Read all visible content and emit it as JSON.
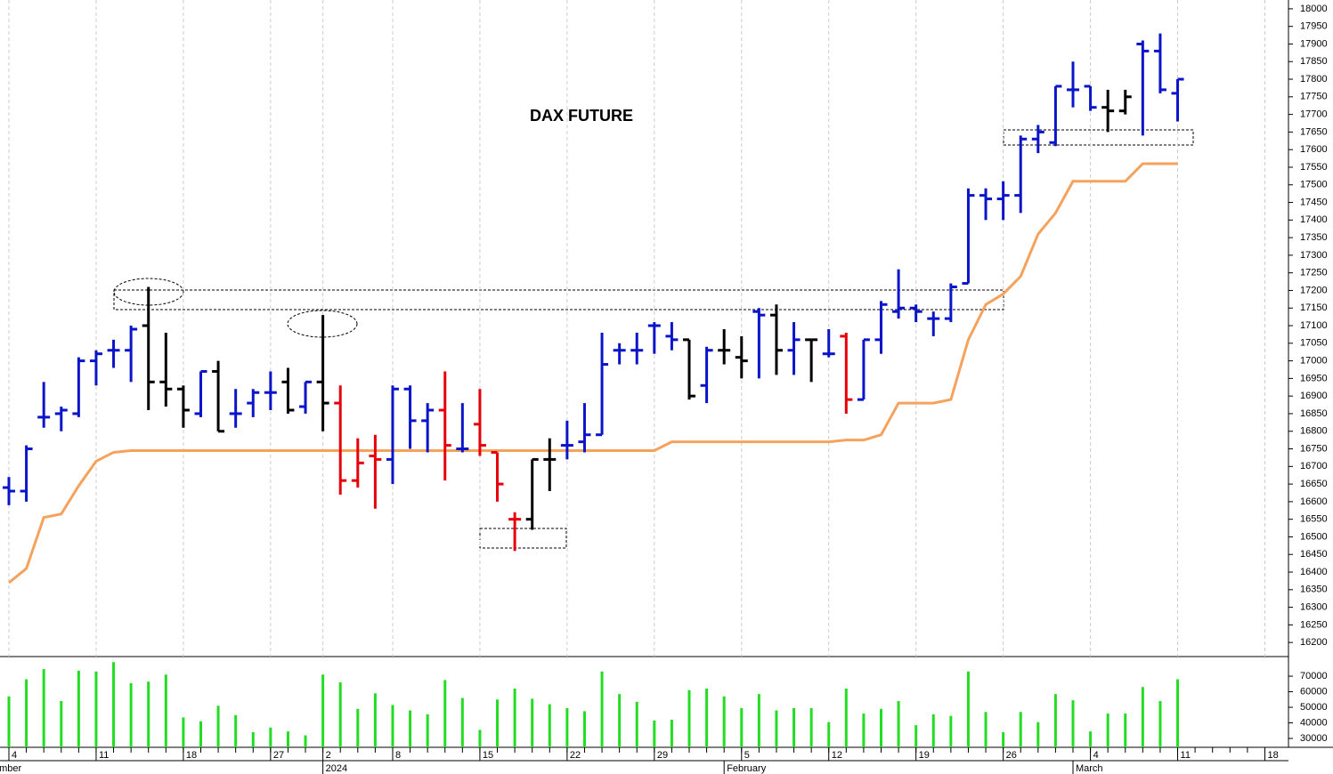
{
  "chart_data": {
    "type": "ohlc",
    "title": "DAX FUTURE",
    "categories": [
      "4",
      null,
      null,
      null,
      null,
      "11",
      null,
      null,
      null,
      null,
      "18",
      null,
      null,
      null,
      null,
      "27",
      null,
      null,
      "2",
      null,
      null,
      null,
      "8",
      null,
      null,
      null,
      null,
      "15",
      null,
      null,
      null,
      null,
      "22",
      null,
      null,
      null,
      null,
      "29",
      null,
      null,
      null,
      null,
      "5",
      null,
      null,
      null,
      null,
      "12",
      null,
      null,
      null,
      null,
      "19",
      null,
      null,
      null,
      null,
      "26",
      null,
      null,
      null,
      null,
      "4",
      null,
      null,
      null,
      null,
      "11",
      null,
      null,
      null,
      null,
      "18"
    ],
    "months": [
      {
        "label": "December",
        "at": -1
      },
      {
        "label": "2024",
        "at": 18
      },
      {
        "label": "February",
        "at": 41
      },
      {
        "label": "March",
        "at": 61
      }
    ],
    "open": [
      16640,
      16630,
      16840,
      16850,
      16850,
      17000,
      17030,
      17030,
      17100,
      16940,
      16920,
      16850,
      16970,
      16850,
      16880,
      16910,
      16940,
      16870,
      16940,
      16880,
      16660,
      16730,
      16720,
      16920,
      16830,
      16860,
      16750,
      16820,
      16740,
      16550,
      16550,
      16720,
      16760,
      16770,
      16790,
      17030,
      17030,
      17100,
      17070,
      17060,
      16930,
      17030,
      17010,
      17140,
      17130,
      17030,
      17060,
      17020,
      17070,
      16890,
      17060,
      17140,
      17150,
      17120,
      17120,
      17220,
      17470,
      17460,
      17470,
      17630,
      17620,
      17770,
      17780,
      17720,
      17710,
      17900,
      17880,
      17760,
      null,
      null,
      null,
      null,
      null
    ],
    "high": [
      16670,
      16760,
      16940,
      16870,
      17010,
      17030,
      17060,
      17100,
      17210,
      17080,
      16930,
      16970,
      17000,
      16920,
      16920,
      16970,
      16980,
      16940,
      17130,
      16930,
      16780,
      16790,
      16930,
      16930,
      16880,
      16970,
      16880,
      16920,
      16740,
      16570,
      16720,
      16780,
      16830,
      16880,
      17080,
      17050,
      17080,
      17110,
      17110,
      17060,
      17040,
      17090,
      17070,
      17150,
      17160,
      17110,
      17060,
      17090,
      17080,
      17060,
      17170,
      17260,
      17160,
      17140,
      17220,
      17490,
      17490,
      17510,
      17640,
      17670,
      17780,
      17850,
      17780,
      17770,
      17770,
      17910,
      17930,
      17800,
      null,
      null,
      null,
      null,
      null
    ],
    "low": [
      16590,
      16600,
      16810,
      16800,
      16840,
      16930,
      16980,
      16940,
      16860,
      16870,
      16810,
      16840,
      16800,
      16810,
      16840,
      16860,
      16850,
      16850,
      16800,
      16620,
      16640,
      16580,
      16650,
      16750,
      16740,
      16660,
      16740,
      16730,
      16600,
      16460,
      16520,
      16630,
      16720,
      16740,
      16790,
      16990,
      16990,
      17020,
      17030,
      16890,
      16880,
      16990,
      16950,
      16950,
      16960,
      16960,
      16940,
      17010,
      16850,
      16890,
      17020,
      17120,
      17110,
      17070,
      17110,
      17220,
      17400,
      17400,
      17420,
      17590,
      17610,
      17720,
      17710,
      17650,
      17700,
      17640,
      17760,
      17680,
      null,
      null,
      null,
      null,
      null
    ],
    "close": [
      16630,
      16750,
      16840,
      16860,
      17000,
      17020,
      17030,
      17090,
      16940,
      16920,
      16860,
      16970,
      16800,
      16850,
      16910,
      16910,
      16860,
      16940,
      16880,
      16660,
      16710,
      16720,
      16920,
      16830,
      16860,
      16760,
      16750,
      16760,
      16650,
      16550,
      16720,
      16720,
      16760,
      16790,
      16990,
      17030,
      17030,
      17100,
      17060,
      16900,
      17030,
      17030,
      17000,
      17130,
      17030,
      17060,
      17060,
      17020,
      16890,
      17060,
      17160,
      17150,
      17140,
      17120,
      17210,
      17470,
      17460,
      17470,
      17630,
      17650,
      17780,
      17770,
      17720,
      17710,
      17750,
      17880,
      17770,
      17800,
      null,
      null,
      null,
      null,
      null
    ],
    "palette": {
      "b": "#0a14c8",
      "k": "#000000",
      "r": "#e6000a"
    },
    "bar_colors": [
      "b",
      "b",
      "b",
      "b",
      "b",
      "b",
      "b",
      "b",
      "k",
      "k",
      "k",
      "b",
      "k",
      "b",
      "b",
      "b",
      "k",
      "b",
      "k",
      "r",
      "r",
      "r",
      "b",
      "b",
      "b",
      "r",
      "b",
      "r",
      "r",
      "r",
      "k",
      "k",
      "b",
      "b",
      "b",
      "b",
      "b",
      "b",
      "b",
      "k",
      "b",
      "k",
      "k",
      "b",
      "k",
      "b",
      "k",
      "b",
      "r",
      "b",
      "b",
      "b",
      "b",
      "b",
      "b",
      "b",
      "b",
      "b",
      "b",
      "b",
      "b",
      "b",
      "b",
      "k",
      "k",
      "b",
      "b",
      "b"
    ],
    "trail": {
      "color": "#f5a25d",
      "values": [
        16370,
        16410,
        16555,
        16565,
        16645,
        16715,
        16740,
        16745,
        16745,
        16745,
        16745,
        16745,
        16745,
        16745,
        16745,
        16745,
        16745,
        16745,
        16745,
        16745,
        16745,
        16745,
        16745,
        16745,
        16745,
        16745,
        16745,
        16745,
        16745,
        16745,
        16745,
        16745,
        16745,
        16745,
        16745,
        16745,
        16745,
        16745,
        16770,
        16770,
        16770,
        16770,
        16770,
        16770,
        16770,
        16770,
        16770,
        16770,
        16775,
        16775,
        16790,
        16880,
        16880,
        16880,
        16890,
        17060,
        17160,
        17190,
        17240,
        17360,
        17420,
        17510,
        17510,
        17510,
        17510,
        17560,
        17560,
        17560,
        null,
        null,
        null,
        null,
        null
      ]
    },
    "volume": {
      "color": "#22dd22",
      "values": [
        57000,
        68000,
        74500,
        54000,
        73500,
        73000,
        79000,
        65500,
        66500,
        71000,
        43500,
        41000,
        51000,
        45000,
        34000,
        37000,
        34500,
        32000,
        71000,
        66000,
        49000,
        59000,
        51500,
        48000,
        45500,
        67500,
        56000,
        35500,
        55000,
        62000,
        55500,
        52000,
        49500,
        47500,
        73000,
        58500,
        53500,
        41500,
        42000,
        61000,
        62000,
        57000,
        49500,
        58500,
        48000,
        49500,
        49500,
        40500,
        62000,
        46000,
        49000,
        54000,
        38500,
        45500,
        44500,
        73000,
        47000,
        34000,
        47000,
        40500,
        58500,
        54500,
        34500,
        46000,
        46000,
        63000,
        54000,
        68000,
        null,
        null,
        null,
        null,
        null
      ],
      "ylim": [
        24300,
        82600
      ],
      "yticks": [
        30000,
        40000,
        50000,
        60000,
        70000
      ]
    },
    "ylim": [
      16160,
      18025
    ],
    "yticks": [
      16200,
      16250,
      16300,
      16350,
      16400,
      16450,
      16500,
      16550,
      16600,
      16650,
      16700,
      16750,
      16800,
      16850,
      16900,
      16950,
      17000,
      17050,
      17100,
      17150,
      17200,
      17250,
      17300,
      17350,
      17400,
      17450,
      17500,
      17550,
      17600,
      17650,
      17700,
      17750,
      17800,
      17850,
      17900,
      17950,
      18000
    ],
    "grid": true
  }
}
